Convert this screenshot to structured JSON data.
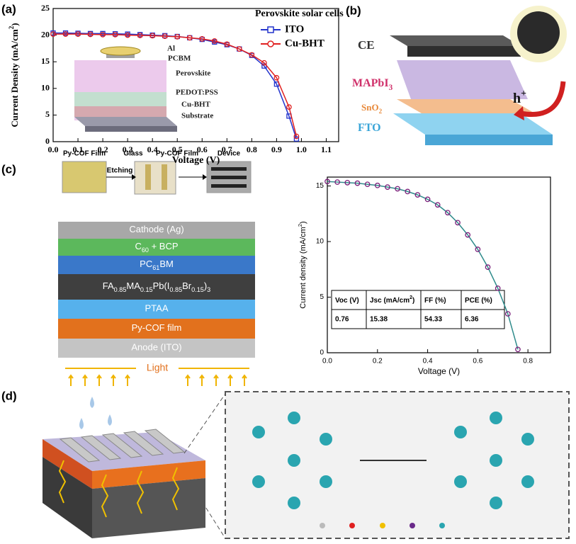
{
  "panel_labels": [
    "(a)",
    "(b)",
    "(c)",
    "(d)"
  ],
  "chart_data": [
    {
      "type": "line",
      "title": "Perovskite solar cells",
      "xlabel": "Voltage (V)",
      "ylabel": [
        "Current Density (mA/cm",
        "2",
        ")"
      ],
      "x": [
        0,
        0.05,
        0.1,
        0.15,
        0.2,
        0.25,
        0.3,
        0.35,
        0.4,
        0.45,
        0.5,
        0.55,
        0.6,
        0.65,
        0.7,
        0.75,
        0.8,
        0.85,
        0.9,
        0.95,
        0.98
      ],
      "series": [
        {
          "name": "ITO",
          "color": "#2233cc",
          "marker": "square",
          "values": [
            20.4,
            20.4,
            20.35,
            20.3,
            20.3,
            20.25,
            20.2,
            20.1,
            20.0,
            19.9,
            19.75,
            19.5,
            19.2,
            18.7,
            18.2,
            17.4,
            16.2,
            14.2,
            10.8,
            4.8,
            0.5
          ]
        },
        {
          "name": "Cu-BHT",
          "color": "#e02020",
          "marker": "circle",
          "values": [
            20.2,
            20.2,
            20.2,
            20.15,
            20.1,
            20.1,
            20.0,
            19.95,
            19.9,
            19.8,
            19.7,
            19.5,
            19.3,
            18.9,
            18.3,
            17.4,
            16.3,
            14.8,
            12.0,
            6.5,
            1.0
          ]
        }
      ],
      "xlim": [
        0,
        1.15
      ],
      "ylim": [
        0,
        25
      ],
      "xticks": [
        {
          "value": 0,
          "label": "0.0"
        },
        0.1,
        0.2,
        0.3,
        0.4,
        0.5,
        0.6,
        0.7,
        0.8,
        0.9,
        {
          "value": 1,
          "label": "1.0"
        },
        1.1
      ],
      "yticks": [
        0,
        5,
        10,
        15,
        20,
        25
      ],
      "legend": "upper right"
    },
    {
      "type": "line",
      "xlabel": "Voltage (V)",
      "ylabel": [
        "Current density (mA/cm",
        "2",
        ")"
      ],
      "x": [
        0,
        0.04,
        0.08,
        0.12,
        0.16,
        0.2,
        0.24,
        0.28,
        0.32,
        0.36,
        0.4,
        0.44,
        0.48,
        0.52,
        0.56,
        0.6,
        0.64,
        0.68,
        0.72,
        0.76
      ],
      "series": [
        {
          "color": "#2e8b8b",
          "marker": "circle",
          "marker_color": "#7a1f7a",
          "values": [
            15.4,
            15.35,
            15.3,
            15.25,
            15.15,
            15.05,
            14.9,
            14.75,
            14.5,
            14.2,
            13.8,
            13.3,
            12.6,
            11.7,
            10.6,
            9.3,
            7.7,
            5.8,
            3.5,
            0.3
          ]
        }
      ],
      "xlim": [
        0,
        0.89
      ],
      "ylim": [
        0,
        15.8
      ],
      "xticks": [
        {
          "value": 0,
          "label": "0.0"
        },
        0.2,
        0.4,
        0.6,
        0.8
      ],
      "yticks": [
        0,
        5,
        10,
        15
      ]
    }
  ],
  "panel_a_inset": {
    "layers": [
      "Al",
      "PCBM",
      "Perovskite",
      "PEDOT:PSS",
      "Cu-BHT",
      "Substrate"
    ]
  },
  "panel_b": {
    "labels": [
      [
        "CE"
      ],
      [
        "MAPbI",
        "3"
      ],
      [
        "SnO",
        "2"
      ],
      [
        "FTO"
      ]
    ],
    "hole": [
      "h",
      "+"
    ]
  },
  "panel_c": {
    "photos": [
      "Py-COF Film",
      "Etching",
      "Glass",
      "Py-COF Film",
      "Device"
    ],
    "layers": [
      {
        "label": [
          "Cathode (Ag)"
        ],
        "color": "#a8a8a8"
      },
      {
        "label": [
          "C",
          "60",
          " + BCP"
        ],
        "color": "#5cb85c"
      },
      {
        "label": [
          "PC",
          "61",
          "BM"
        ],
        "color": "#3a78c9"
      },
      {
        "label": [
          "FA",
          "0.85",
          "MA",
          "0.15",
          "Pb(I",
          "0.85",
          "Br",
          "0.15",
          ")",
          "3"
        ],
        "color": "#3f3f3f"
      },
      {
        "label": [
          "PTAA"
        ],
        "color": "#56b1ec"
      },
      {
        "label": [
          "Py-COF film"
        ],
        "color": "#e2711d"
      },
      {
        "label": [
          "Anode (ITO)"
        ],
        "color": "#c4c4c4"
      }
    ],
    "light": "Light",
    "table": {
      "header": [
        [
          "Voc (V)"
        ],
        [
          "Jsc (mA/cm",
          "2",
          ")"
        ],
        [
          "FF (%)"
        ],
        [
          "PCE (%)"
        ]
      ],
      "row": [
        0.76,
        15.38,
        54.33,
        6.36
      ]
    }
  }
}
